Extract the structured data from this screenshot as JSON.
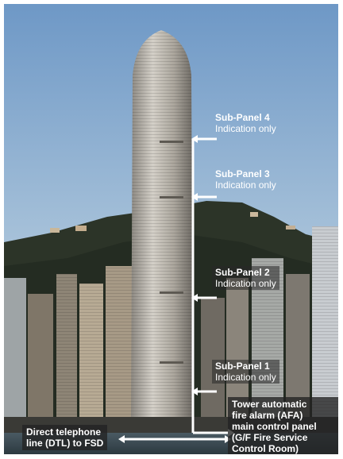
{
  "labels": {
    "sub4": {
      "title": "Sub-Panel 4",
      "sub": "Indication only"
    },
    "sub3": {
      "title": "Sub-Panel 3",
      "sub": "Indication only"
    },
    "sub2": {
      "title": "Sub-Panel 2",
      "sub": "Indication only"
    },
    "sub1": {
      "title": "Sub-Panel 1",
      "sub": "Indication only"
    },
    "afa": [
      "Tower automatic",
      "fire alarm (AFA)",
      "main control panel",
      "(G/F Fire Service",
      "Control Room)"
    ],
    "dtl": [
      "Direct telephone",
      "line (DTL) to FSD"
    ]
  },
  "colors": {
    "sky_top": "#6f9ac8",
    "sky_bottom": "#c9dbe6",
    "hill": "#2a3025",
    "tower": "#b9b4ab",
    "arrow": "#ffffff"
  }
}
